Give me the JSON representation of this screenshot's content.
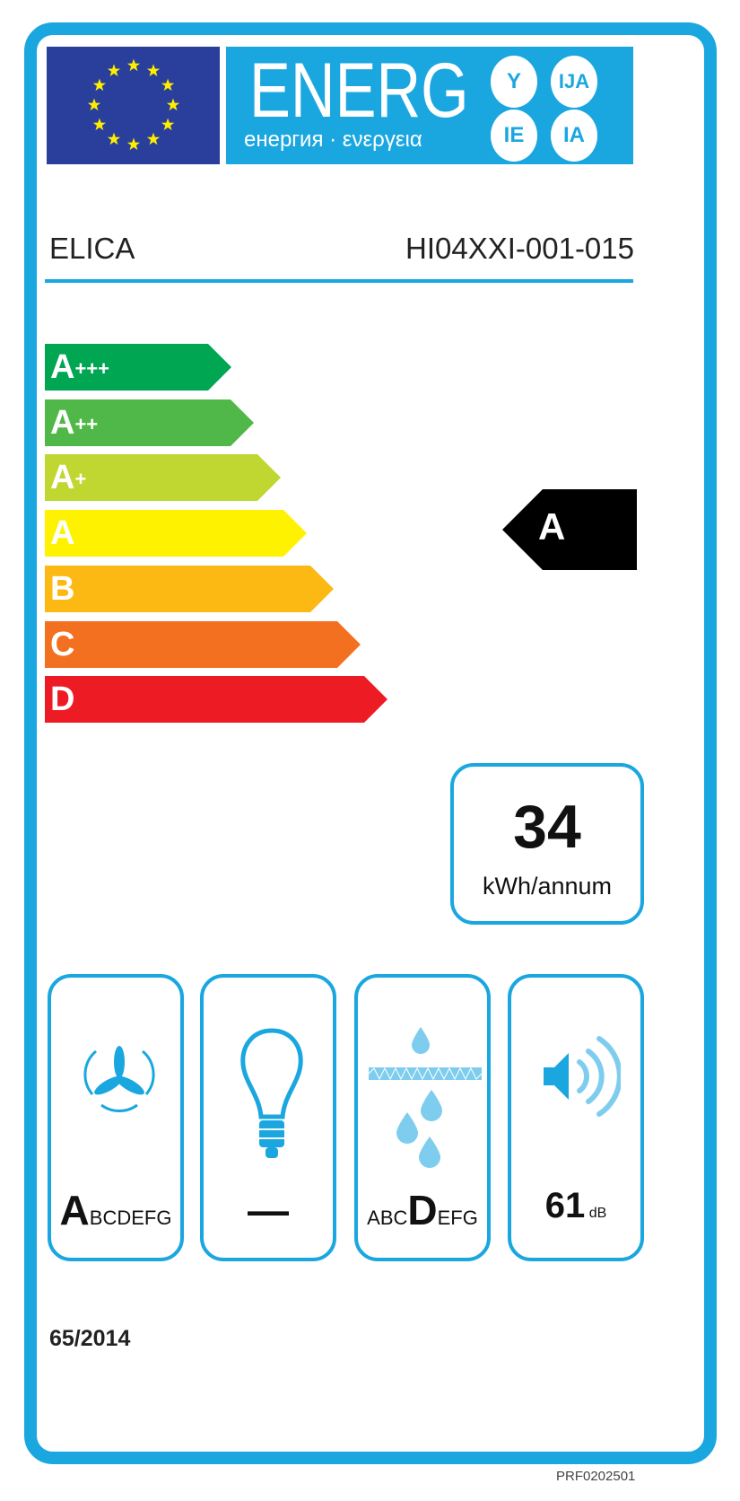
{
  "header": {
    "energy_word": "ENERG",
    "energy_subtitle": "енергия · ενεργεια",
    "suffixes": [
      "Y",
      "IJA",
      "IE",
      "IA"
    ],
    "flag": "eu-flag-icon"
  },
  "supplier": "ELICA",
  "model": "HI04XXI-001-015",
  "scale": {
    "classes": [
      {
        "letter": "A",
        "plus": "+++",
        "color": "#00a651"
      },
      {
        "letter": "A",
        "plus": "++",
        "color": "#50b848"
      },
      {
        "letter": "A",
        "plus": "+",
        "color": "#bfd730"
      },
      {
        "letter": "A",
        "plus": "",
        "color": "#fff200"
      },
      {
        "letter": "B",
        "plus": "",
        "color": "#fdb913"
      },
      {
        "letter": "C",
        "plus": "",
        "color": "#f37021"
      },
      {
        "letter": "D",
        "plus": "",
        "color": "#ed1c24"
      }
    ]
  },
  "rating": {
    "class": "A",
    "color": "#000000"
  },
  "consumption": {
    "value": "34",
    "unit": "kWh/annum"
  },
  "pictograms": [
    {
      "icon": "fan-icon",
      "big": "A",
      "rest_after": "BCDEFG",
      "rest_before": ""
    },
    {
      "icon": "light-bulb-icon",
      "text": "—"
    },
    {
      "icon": "grease-filter-icon",
      "rest_before": "ABC",
      "big": "D",
      "rest_after": "EFG"
    },
    {
      "icon": "noise-speaker-icon",
      "value": "61",
      "unit": "dB"
    }
  ],
  "regulation": "65/2014",
  "reference": "PRF0202501",
  "accent_color": "#1aa7e0"
}
